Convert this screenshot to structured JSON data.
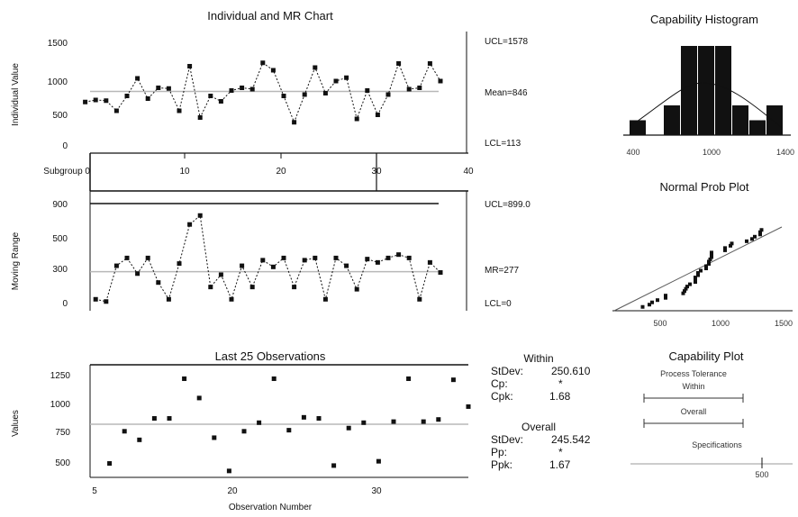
{
  "chart_data": [
    {
      "type": "line",
      "name": "individual",
      "title": "Individual and MR Chart",
      "ylabel": "Individual Value",
      "ylim": [
        0,
        1600
      ],
      "yticks": [
        "1500",
        "1000",
        "500",
        "0"
      ],
      "xlim": [
        0,
        40
      ],
      "xticks": [
        "Subgroup 0",
        "10",
        "20",
        "30",
        "40"
      ],
      "limits": {
        "ucl": "UCL=1578",
        "mean": "Mean=846",
        "lcl": "LCL=113"
      },
      "center": 846,
      "values": [
        690,
        720,
        710,
        560,
        780,
        1040,
        740,
        900,
        890,
        560,
        1220,
        460,
        780,
        700,
        860,
        900,
        880,
        1270,
        1160,
        780,
        390,
        800,
        1200,
        820,
        1000,
        1050,
        440,
        860,
        500,
        800,
        1260,
        880,
        900,
        1260,
        1000
      ]
    },
    {
      "type": "line",
      "name": "moving-range",
      "ylabel": "Moving Range",
      "ylim": [
        0,
        1000
      ],
      "yticks": [
        "900",
        "500",
        "300",
        "0"
      ],
      "limits": {
        "ucl": "UCL=899.0",
        "mean": "MR=277",
        "lcl": "LCL=0"
      },
      "center": 277,
      "values": [
        30,
        10,
        330,
        400,
        260,
        400,
        180,
        30,
        350,
        700,
        780,
        140,
        250,
        30,
        330,
        140,
        380,
        320,
        400,
        140,
        380,
        400,
        30,
        400,
        330,
        120,
        390,
        360,
        400,
        430,
        400,
        30,
        360,
        270
      ]
    },
    {
      "type": "scatter",
      "name": "last-25",
      "title": "Last 25 Observations",
      "ylabel": "Values",
      "xlabel": "Observation Number",
      "ylim": [
        350,
        1400
      ],
      "yticks": [
        "1250",
        "1000",
        "750",
        "500"
      ],
      "xlim": [
        15,
        40
      ],
      "xticks": [
        "5",
        "20",
        "30"
      ],
      "center": 846,
      "x": [
        16,
        17,
        18,
        19,
        20,
        21,
        22,
        23,
        24,
        25,
        26,
        27,
        28,
        29,
        30,
        31,
        32,
        33,
        34,
        35,
        36,
        37,
        38,
        39,
        40
      ],
      "values": [
        480,
        780,
        700,
        900,
        900,
        1270,
        1090,
        720,
        410,
        780,
        860,
        1270,
        790,
        910,
        900,
        460,
        810,
        860,
        500,
        870,
        1270,
        870,
        890,
        1260,
        1010
      ]
    },
    {
      "type": "bar",
      "name": "capability-histogram",
      "title": "Capability Histogram",
      "xticks": [
        "400",
        "1000",
        "1400"
      ],
      "values": [
        1,
        0,
        2,
        6,
        6,
        6,
        2,
        1,
        2
      ]
    },
    {
      "type": "scatter",
      "name": "normal-prob-plot",
      "title": "Normal Prob Plot",
      "xticks": [
        "500",
        "1000",
        "1500"
      ]
    },
    {
      "type": "line",
      "name": "capability-plot",
      "title": "Capability Plot",
      "xticks": [
        "500"
      ]
    }
  ],
  "within": {
    "heading": "Within",
    "stdev_label": "StDev:",
    "stdev": "250.610",
    "cp_label": "Cp:",
    "cp": "*",
    "cpk_label": "Cpk:",
    "cpk": "1.68"
  },
  "overall": {
    "heading": "Overall",
    "stdev_label": "StDev:",
    "stdev": "245.542",
    "pp_label": "Pp:",
    "pp": "*",
    "ppk_label": "Ppk:",
    "ppk": "1.67"
  },
  "capability_plot": {
    "process_label": "Process Tolerance",
    "within_label": "Within",
    "overall_label": "Overall",
    "specs_label": "Specifications"
  },
  "colors": {
    "center": "#b8b8b8",
    "ink": "#111111"
  }
}
